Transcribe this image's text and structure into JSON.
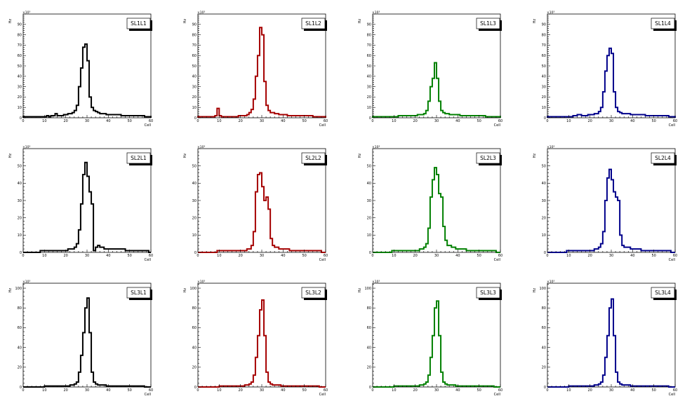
{
  "canvas": {
    "background": "#ffffff"
  },
  "chart_data": [
    {
      "type": "histogram",
      "title": "SL1L1",
      "xlabel": "Cell",
      "ylabel": "Hz",
      "multiplier_label": "×10³",
      "color": "#000000",
      "xlim": [
        0,
        60
      ],
      "ylim": [
        0,
        100
      ],
      "xticks": [
        0,
        10,
        20,
        30,
        40,
        50,
        60
      ],
      "yticks": [
        0,
        10,
        20,
        30,
        40,
        50,
        60,
        70,
        80,
        90
      ],
      "bin_width": 1,
      "values": [
        1,
        1,
        1,
        1,
        1,
        1,
        1,
        1,
        1,
        1,
        1,
        2,
        1,
        2,
        2,
        4,
        2,
        2,
        2,
        3,
        3,
        4,
        4,
        5,
        7,
        12,
        30,
        48,
        68,
        71,
        55,
        20,
        10,
        7,
        6,
        5,
        4,
        4,
        4,
        3,
        3,
        3,
        3,
        3,
        3,
        3,
        2,
        2,
        2,
        2,
        2,
        2,
        2,
        2,
        2,
        2,
        2,
        1,
        1,
        1
      ]
    },
    {
      "type": "histogram",
      "title": "SL1L2",
      "xlabel": "Cell",
      "ylabel": "Hz",
      "multiplier_label": "×10³",
      "color": "#a50000",
      "xlim": [
        0,
        60
      ],
      "ylim": [
        0,
        100
      ],
      "xticks": [
        0,
        10,
        20,
        30,
        40,
        50,
        60
      ],
      "yticks": [
        0,
        10,
        20,
        30,
        40,
        50,
        60,
        70,
        80,
        90
      ],
      "bin_width": 1,
      "values": [
        1,
        1,
        1,
        1,
        1,
        1,
        1,
        1,
        2,
        9,
        2,
        1,
        1,
        1,
        1,
        1,
        1,
        1,
        1,
        2,
        2,
        2,
        2,
        3,
        5,
        8,
        18,
        40,
        60,
        87,
        80,
        35,
        12,
        7,
        5,
        5,
        4,
        4,
        3,
        3,
        3,
        3,
        2,
        2,
        2,
        2,
        2,
        2,
        2,
        2,
        2,
        2,
        2,
        2,
        1,
        1,
        1,
        1,
        1,
        1
      ]
    },
    {
      "type": "histogram",
      "title": "SL1L3",
      "xlabel": "Cell",
      "ylabel": "Hz",
      "multiplier_label": "×10³",
      "color": "#008000",
      "xlim": [
        0,
        60
      ],
      "ylim": [
        0,
        100
      ],
      "xticks": [
        0,
        10,
        20,
        30,
        40,
        50,
        60
      ],
      "yticks": [
        0,
        10,
        20,
        30,
        40,
        50,
        60,
        70,
        80,
        90
      ],
      "bin_width": 1,
      "values": [
        1,
        1,
        1,
        1,
        1,
        1,
        1,
        1,
        1,
        1,
        1,
        1,
        2,
        2,
        2,
        2,
        2,
        2,
        2,
        2,
        2,
        3,
        3,
        3,
        4,
        7,
        16,
        30,
        38,
        53,
        38,
        16,
        7,
        5,
        4,
        4,
        3,
        3,
        3,
        3,
        3,
        2,
        2,
        2,
        2,
        2,
        2,
        2,
        2,
        2,
        2,
        2,
        2,
        1,
        1,
        1,
        1,
        1,
        1,
        1
      ]
    },
    {
      "type": "histogram",
      "title": "SL1L4",
      "xlabel": "Cell",
      "ylabel": "Hz",
      "multiplier_label": "×10³",
      "color": "#00008b",
      "xlim": [
        0,
        60
      ],
      "ylim": [
        0,
        100
      ],
      "xticks": [
        0,
        10,
        20,
        30,
        40,
        50,
        60
      ],
      "yticks": [
        0,
        10,
        20,
        30,
        40,
        50,
        60,
        70,
        80,
        90
      ],
      "bin_width": 1,
      "values": [
        1,
        1,
        1,
        1,
        1,
        1,
        1,
        1,
        1,
        1,
        1,
        1,
        2,
        2,
        3,
        3,
        2,
        2,
        2,
        3,
        3,
        3,
        4,
        4,
        6,
        10,
        25,
        45,
        60,
        67,
        62,
        25,
        10,
        6,
        5,
        4,
        4,
        4,
        4,
        3,
        3,
        3,
        3,
        3,
        3,
        3,
        2,
        2,
        2,
        2,
        2,
        2,
        2,
        2,
        2,
        2,
        2,
        1,
        1,
        1
      ]
    },
    {
      "type": "histogram",
      "title": "SL2L1",
      "xlabel": "Cell",
      "ylabel": "Hz",
      "multiplier_label": "×10³",
      "color": "#000000",
      "xlim": [
        0,
        60
      ],
      "ylim": [
        0,
        60
      ],
      "xticks": [
        0,
        10,
        20,
        30,
        40,
        50,
        60
      ],
      "yticks": [
        0,
        10,
        20,
        30,
        40,
        50
      ],
      "bin_width": 1,
      "values": [
        0,
        0,
        0,
        0,
        0,
        0,
        0,
        0,
        1,
        1,
        1,
        1,
        1,
        1,
        1,
        1,
        1,
        1,
        1,
        1,
        1,
        2,
        2,
        2,
        3,
        5,
        13,
        28,
        45,
        52,
        44,
        35,
        28,
        1,
        3,
        4,
        3,
        3,
        2,
        2,
        2,
        2,
        2,
        2,
        2,
        2,
        2,
        2,
        1,
        1,
        1,
        1,
        1,
        1,
        1,
        1,
        1,
        1,
        1,
        0
      ]
    },
    {
      "type": "histogram",
      "title": "SL2L2",
      "xlabel": "Cell",
      "ylabel": "Hz",
      "multiplier_label": "×10³",
      "color": "#a50000",
      "xlim": [
        0,
        60
      ],
      "ylim": [
        0,
        60
      ],
      "xticks": [
        0,
        10,
        20,
        30,
        40,
        50,
        60
      ],
      "yticks": [
        0,
        10,
        20,
        30,
        40,
        50
      ],
      "bin_width": 1,
      "values": [
        0,
        0,
        0,
        0,
        0,
        0,
        0,
        0,
        0,
        1,
        1,
        1,
        1,
        1,
        1,
        1,
        1,
        1,
        1,
        1,
        1,
        1,
        1,
        2,
        2,
        4,
        12,
        35,
        45,
        46,
        38,
        30,
        32,
        25,
        8,
        4,
        3,
        3,
        2,
        2,
        2,
        2,
        2,
        1,
        1,
        1,
        1,
        1,
        1,
        1,
        1,
        1,
        1,
        1,
        1,
        1,
        1,
        1,
        0,
        0
      ]
    },
    {
      "type": "histogram",
      "title": "SL2L3",
      "xlabel": "Cell",
      "ylabel": "Hz",
      "multiplier_label": "×10³",
      "color": "#008000",
      "xlim": [
        0,
        60
      ],
      "ylim": [
        0,
        60
      ],
      "xticks": [
        0,
        10,
        20,
        30,
        40,
        50,
        60
      ],
      "yticks": [
        0,
        10,
        20,
        30,
        40,
        50
      ],
      "bin_width": 1,
      "values": [
        0,
        0,
        0,
        0,
        0,
        0,
        0,
        0,
        0,
        1,
        1,
        1,
        1,
        1,
        1,
        1,
        1,
        1,
        1,
        1,
        1,
        1,
        2,
        2,
        3,
        5,
        14,
        32,
        42,
        49,
        45,
        34,
        32,
        15,
        7,
        4,
        4,
        3,
        3,
        2,
        2,
        2,
        2,
        2,
        1,
        1,
        1,
        1,
        1,
        1,
        1,
        1,
        1,
        1,
        1,
        1,
        1,
        1,
        0,
        0
      ]
    },
    {
      "type": "histogram",
      "title": "SL2L4",
      "xlabel": "Cell",
      "ylabel": "Hz",
      "multiplier_label": "×10³",
      "color": "#00008b",
      "xlim": [
        0,
        60
      ],
      "ylim": [
        0,
        60
      ],
      "xticks": [
        0,
        10,
        20,
        30,
        40,
        50,
        60
      ],
      "yticks": [
        0,
        10,
        20,
        30,
        40,
        50
      ],
      "bin_width": 1,
      "values": [
        0,
        0,
        0,
        0,
        0,
        0,
        0,
        0,
        0,
        1,
        1,
        1,
        1,
        1,
        1,
        1,
        1,
        1,
        1,
        1,
        1,
        1,
        2,
        2,
        3,
        5,
        12,
        30,
        43,
        48,
        42,
        35,
        32,
        30,
        10,
        4,
        3,
        3,
        3,
        2,
        2,
        2,
        2,
        2,
        1,
        1,
        1,
        1,
        1,
        1,
        1,
        1,
        1,
        1,
        1,
        1,
        1,
        1,
        0,
        0
      ]
    },
    {
      "type": "histogram",
      "title": "SL3L1",
      "xlabel": "Cell",
      "ylabel": "Hz",
      "multiplier_label": "×10³",
      "color": "#000000",
      "xlim": [
        0,
        60
      ],
      "ylim": [
        0,
        105
      ],
      "xticks": [
        0,
        10,
        20,
        30,
        40,
        50,
        60
      ],
      "yticks": [
        0,
        20,
        40,
        60,
        80,
        100
      ],
      "bin_width": 1,
      "values": [
        0,
        0,
        0,
        0,
        0,
        0,
        0,
        0,
        0,
        0,
        1,
        1,
        1,
        1,
        1,
        1,
        1,
        1,
        1,
        1,
        1,
        1,
        2,
        2,
        3,
        5,
        15,
        32,
        55,
        80,
        90,
        55,
        15,
        5,
        3,
        2,
        2,
        2,
        2,
        1,
        1,
        1,
        1,
        1,
        1,
        1,
        1,
        1,
        1,
        1,
        1,
        1,
        1,
        1,
        1,
        1,
        1,
        0,
        0,
        0
      ]
    },
    {
      "type": "histogram",
      "title": "SL3L2",
      "xlabel": "Cell",
      "ylabel": "Hz",
      "multiplier_label": "×10³",
      "color": "#a50000",
      "xlim": [
        0,
        60
      ],
      "ylim": [
        0,
        105
      ],
      "xticks": [
        0,
        10,
        20,
        30,
        40,
        50,
        60
      ],
      "yticks": [
        0,
        20,
        40,
        60,
        80,
        100
      ],
      "bin_width": 1,
      "values": [
        0,
        0,
        0,
        0,
        0,
        0,
        0,
        0,
        0,
        0,
        1,
        1,
        1,
        1,
        1,
        1,
        1,
        1,
        1,
        1,
        1,
        1,
        2,
        2,
        3,
        5,
        12,
        30,
        52,
        78,
        88,
        52,
        15,
        5,
        3,
        2,
        2,
        2,
        2,
        1,
        1,
        1,
        1,
        1,
        1,
        1,
        1,
        1,
        1,
        1,
        1,
        1,
        1,
        1,
        1,
        1,
        1,
        0,
        0,
        0
      ]
    },
    {
      "type": "histogram",
      "title": "SL3L3",
      "xlabel": "Cell",
      "ylabel": "Hz",
      "multiplier_label": "×10³",
      "color": "#008000",
      "xlim": [
        0,
        60
      ],
      "ylim": [
        0,
        105
      ],
      "xticks": [
        0,
        10,
        20,
        30,
        40,
        50,
        60
      ],
      "yticks": [
        0,
        20,
        40,
        60,
        80,
        100
      ],
      "bin_width": 1,
      "values": [
        0,
        0,
        0,
        0,
        0,
        0,
        0,
        0,
        0,
        0,
        1,
        1,
        1,
        1,
        1,
        1,
        1,
        1,
        1,
        1,
        1,
        1,
        2,
        2,
        3,
        5,
        12,
        30,
        52,
        80,
        87,
        52,
        15,
        5,
        3,
        2,
        2,
        2,
        2,
        1,
        1,
        1,
        1,
        1,
        1,
        1,
        1,
        1,
        1,
        1,
        1,
        1,
        1,
        1,
        1,
        1,
        1,
        0,
        0,
        0
      ]
    },
    {
      "type": "histogram",
      "title": "SL3L4",
      "xlabel": "Cell",
      "ylabel": "Hz",
      "multiplier_label": "×10³",
      "color": "#00008b",
      "xlim": [
        0,
        60
      ],
      "ylim": [
        0,
        105
      ],
      "xticks": [
        0,
        10,
        20,
        30,
        40,
        50,
        60
      ],
      "yticks": [
        0,
        20,
        40,
        60,
        80,
        100
      ],
      "bin_width": 1,
      "values": [
        0,
        0,
        0,
        0,
        0,
        0,
        0,
        0,
        0,
        0,
        1,
        1,
        1,
        1,
        1,
        1,
        1,
        1,
        1,
        1,
        1,
        1,
        2,
        2,
        3,
        5,
        12,
        30,
        52,
        80,
        89,
        52,
        15,
        5,
        3,
        2,
        2,
        2,
        2,
        1,
        1,
        1,
        1,
        1,
        1,
        1,
        1,
        1,
        1,
        1,
        1,
        1,
        1,
        1,
        1,
        1,
        1,
        0,
        0,
        0
      ]
    }
  ]
}
